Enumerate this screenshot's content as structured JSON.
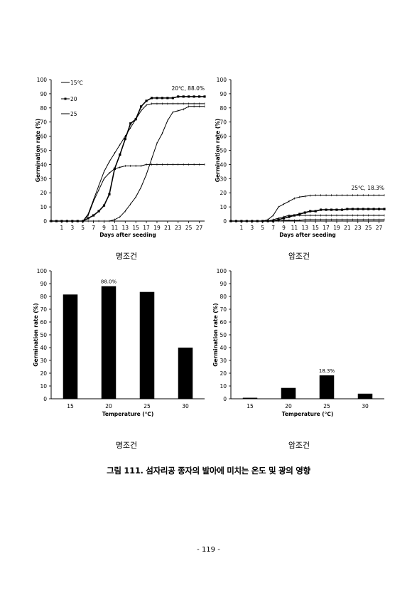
{
  "chart_data": [
    {
      "type": "line",
      "xlabel": "Days after seeding",
      "ylabel": "Germination rate (%)",
      "ylim": [
        0,
        100
      ],
      "xlim": [
        -1,
        28
      ],
      "yticks": [
        "0",
        "10",
        "20",
        "30",
        "40",
        "50",
        "60",
        "70",
        "80",
        "90",
        "100"
      ],
      "xticks": [
        "1",
        "3",
        "5",
        "7",
        "9",
        "11",
        "13",
        "15",
        "17",
        "19",
        "21",
        "23",
        "25",
        "27"
      ],
      "grid": false,
      "legend_position": "top-left",
      "annotation": "20℃, 88.0%",
      "series": [
        {
          "name": "15℃",
          "marker": "line",
          "x": [
            -1,
            0,
            1,
            2,
            3,
            4,
            5,
            6,
            7,
            8,
            9,
            10,
            11,
            12,
            13,
            14,
            15,
            16,
            17,
            18,
            19,
            20,
            21,
            22,
            23,
            24,
            25,
            26,
            27,
            28
          ],
          "y": [
            0,
            0,
            0,
            0,
            0,
            0,
            0,
            0,
            0,
            0,
            0,
            0,
            1,
            3,
            7,
            12,
            17,
            24,
            33,
            44,
            55,
            62,
            71,
            77,
            78,
            79,
            81,
            81,
            81,
            81
          ]
        },
        {
          "name": "20",
          "marker": "square",
          "x": [
            -1,
            0,
            1,
            2,
            3,
            4,
            5,
            6,
            7,
            8,
            9,
            10,
            11,
            12,
            13,
            14,
            15,
            16,
            17,
            18,
            19,
            20,
            21,
            22,
            23,
            24,
            25,
            26,
            27,
            28
          ],
          "y": [
            0,
            0,
            0,
            0,
            0,
            0,
            0,
            2,
            4,
            7,
            11,
            19,
            37,
            47,
            58,
            69,
            72,
            81,
            85,
            87,
            87,
            87,
            87,
            87,
            88,
            88,
            88,
            88,
            88,
            88
          ]
        },
        {
          "name": "25",
          "marker": "line",
          "x": [
            -1,
            0,
            1,
            2,
            3,
            4,
            5,
            6,
            7,
            8,
            9,
            10,
            11,
            12,
            13,
            14,
            15,
            16,
            17,
            18,
            19,
            20,
            21,
            22,
            23,
            24,
            25,
            26,
            27,
            28
          ],
          "y": [
            0,
            0,
            0,
            0,
            0,
            0,
            0,
            5,
            15,
            25,
            35,
            42,
            48,
            54,
            60,
            66,
            72,
            78,
            82,
            83,
            83,
            83,
            83,
            83,
            83,
            83,
            83,
            83,
            83,
            83
          ]
        },
        {
          "name": "",
          "marker": "line",
          "x": [
            -1,
            0,
            1,
            2,
            3,
            4,
            5,
            6,
            7,
            8,
            9,
            10,
            11,
            12,
            13,
            14,
            15,
            16,
            17,
            18,
            19,
            20,
            21,
            22,
            23,
            24,
            25,
            26,
            27,
            28
          ],
          "y": [
            0,
            0,
            0,
            0,
            0,
            0,
            0,
            4,
            14,
            22,
            30,
            34,
            37,
            38,
            39,
            39,
            39,
            39,
            40,
            40,
            40,
            40,
            40,
            40,
            40,
            40,
            40,
            40,
            40,
            40
          ]
        }
      ],
      "caption": "명조건"
    },
    {
      "type": "line",
      "xlabel": "Days after seeding",
      "ylabel": "Germination rate (%)",
      "ylim": [
        0,
        100
      ],
      "xlim": [
        -1,
        28
      ],
      "yticks": [
        "0",
        "10",
        "20",
        "30",
        "40",
        "50",
        "60",
        "70",
        "80",
        "90",
        "100"
      ],
      "xticks": [
        "1",
        "3",
        "5",
        "7",
        "9",
        "11",
        "13",
        "15",
        "17",
        "19",
        "21",
        "23",
        "25",
        "27"
      ],
      "grid": false,
      "annotation": "25℃, 18.3%",
      "series": [
        {
          "name": "",
          "marker": "line",
          "x": [
            -1,
            0,
            1,
            2,
            3,
            4,
            5,
            6,
            7,
            8,
            9,
            10,
            11,
            12,
            13,
            14,
            15,
            16,
            17,
            18,
            19,
            20,
            21,
            22,
            23,
            24,
            25,
            26,
            27,
            28
          ],
          "y": [
            0,
            0,
            0,
            0,
            0,
            0,
            0,
            1,
            4,
            10,
            12,
            14,
            16,
            17,
            17.5,
            18,
            18.3,
            18.3,
            18.3,
            18.3,
            18.3,
            18.3,
            18.3,
            18.3,
            18.3,
            18.3,
            18.3,
            18.3,
            18.3,
            18.3
          ]
        },
        {
          "name": "",
          "marker": "square",
          "x": [
            -1,
            0,
            1,
            2,
            3,
            4,
            5,
            6,
            7,
            8,
            9,
            10,
            11,
            12,
            13,
            14,
            15,
            16,
            17,
            18,
            19,
            20,
            21,
            22,
            23,
            24,
            25,
            26,
            27,
            28
          ],
          "y": [
            0,
            0,
            0,
            0,
            0,
            0,
            0,
            0,
            0,
            1,
            2,
            3,
            4,
            5,
            6,
            7,
            7,
            8,
            8,
            8,
            8,
            8,
            8.5,
            8.5,
            8.5,
            8.5,
            8.5,
            8.5,
            8.5,
            8.5
          ]
        },
        {
          "name": "",
          "marker": "line",
          "x": [
            -1,
            0,
            1,
            2,
            3,
            4,
            5,
            6,
            7,
            8,
            9,
            10,
            11,
            12,
            13,
            14,
            15,
            16,
            17,
            18,
            19,
            20,
            21,
            22,
            23,
            24,
            25,
            26,
            27,
            28
          ],
          "y": [
            0,
            0,
            0,
            0,
            0,
            0,
            0,
            0,
            1,
            2,
            3,
            4,
            4,
            4,
            4,
            4,
            4,
            4,
            4,
            4,
            4,
            4,
            4,
            4,
            4,
            4,
            4,
            4,
            4,
            4
          ]
        },
        {
          "name": "",
          "marker": "line",
          "x": [
            -1,
            0,
            1,
            2,
            3,
            4,
            5,
            6,
            7,
            8,
            9,
            10,
            11,
            12,
            13,
            14,
            15,
            16,
            17,
            18,
            19,
            20,
            21,
            22,
            23,
            24,
            25,
            26,
            27,
            28
          ],
          "y": [
            0,
            0,
            0,
            0,
            0,
            0,
            0,
            0,
            0,
            0,
            0.5,
            0.5,
            0.5,
            0.5,
            1,
            1,
            1,
            1,
            1,
            1,
            1,
            1,
            1,
            1,
            1,
            1,
            1,
            1,
            1,
            1
          ]
        }
      ],
      "caption": "암조건"
    },
    {
      "type": "bar",
      "xlabel": "Temperature (℃)",
      "ylabel": "Germination rate (%)",
      "ylim": [
        0,
        100
      ],
      "yticks": [
        "0",
        "10",
        "20",
        "30",
        "40",
        "50",
        "60",
        "70",
        "80",
        "90",
        "100"
      ],
      "categories": [
        "15",
        "20",
        "25",
        "30"
      ],
      "values": [
        81.5,
        88.0,
        83.5,
        40.0
      ],
      "data_labels": [
        "",
        "88.0%",
        "",
        ""
      ],
      "caption": "명조건"
    },
    {
      "type": "bar",
      "xlabel": "Temperature (℃)",
      "ylabel": "Germination rate (%)",
      "ylim": [
        0,
        100
      ],
      "yticks": [
        "0",
        "10",
        "20",
        "30",
        "40",
        "50",
        "60",
        "70",
        "80",
        "90",
        "100"
      ],
      "categories": [
        "15",
        "20",
        "25",
        "30"
      ],
      "values": [
        0.8,
        8.5,
        18.3,
        4.0
      ],
      "data_labels": [
        "",
        "",
        "18.3%",
        ""
      ],
      "caption": "암조건"
    }
  ],
  "figure_caption": "그림 111. 섬자리공 종자의 발아에 미치는 온도 및 광의 영향",
  "page_number": "- 119 -"
}
